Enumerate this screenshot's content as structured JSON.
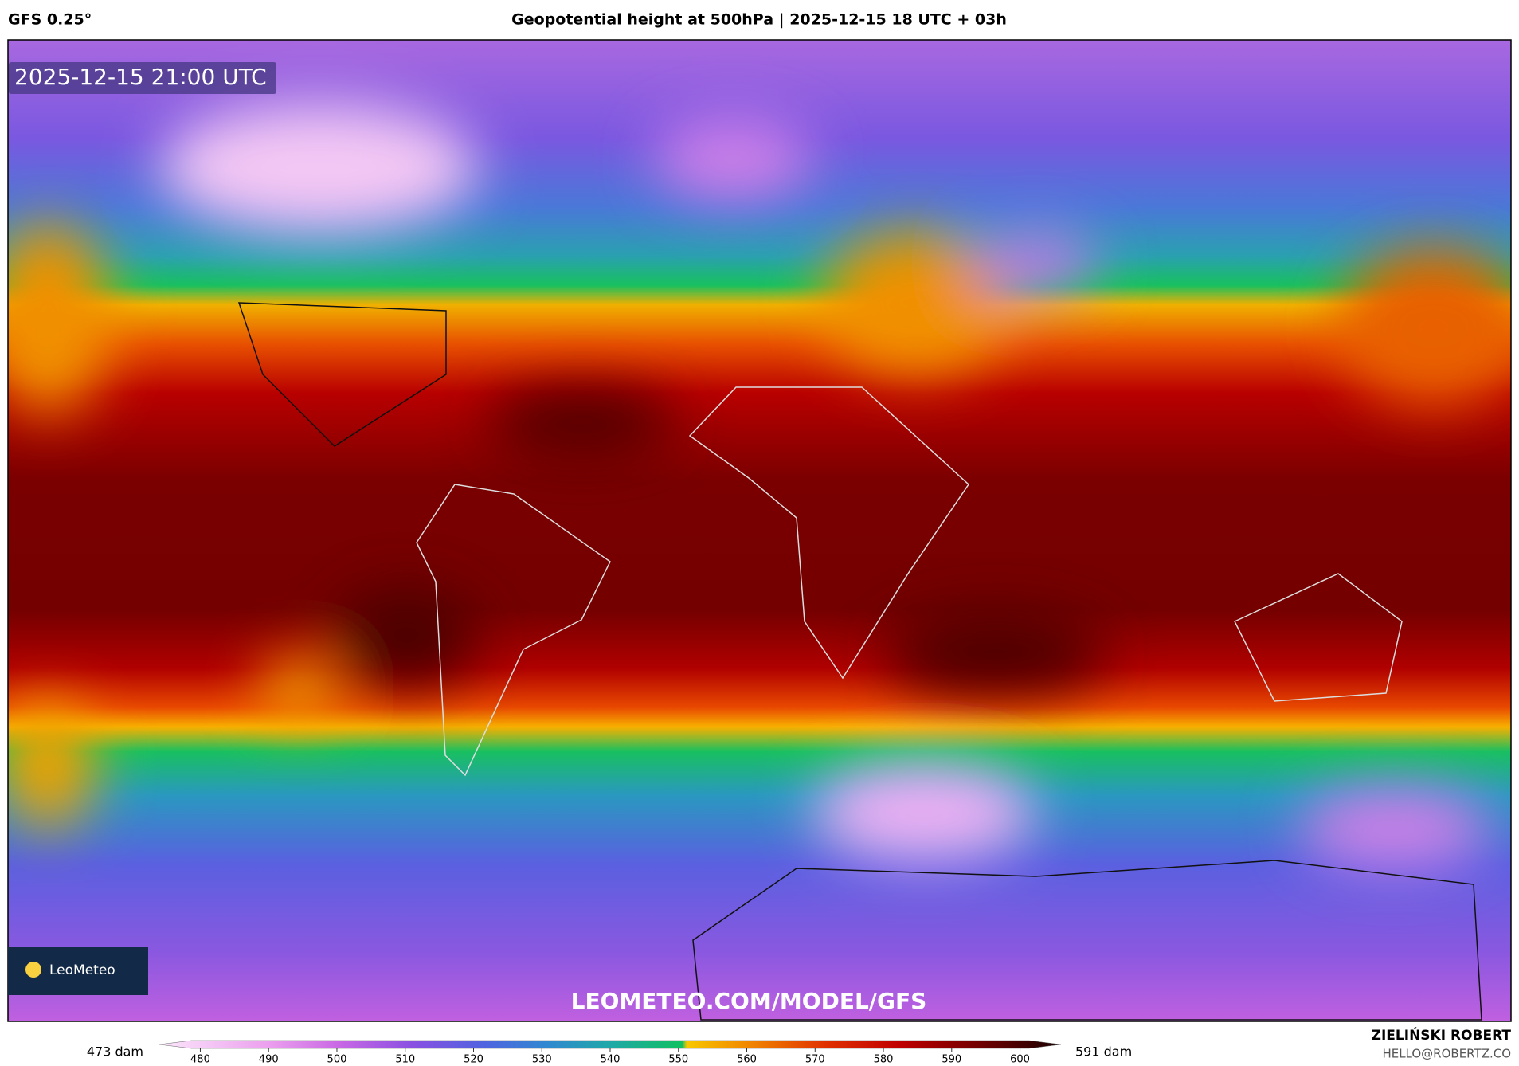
{
  "header": {
    "model": "GFS 0.25°",
    "title": "Geopotential height at 500hPa | 2025-12-15 18 UTC + 03h"
  },
  "map": {
    "valid_time": "2025-12-15 21:00 UTC",
    "watermark": "LEOMETEO.COM/MODEL/GFS",
    "logo": "LeoMeteo"
  },
  "colorbar": {
    "min_label": "473 dam",
    "max_label": "591 dam",
    "lim": [
      474,
      606
    ],
    "ticks": [
      480,
      490,
      500,
      510,
      520,
      530,
      540,
      550,
      560,
      570,
      580,
      590,
      600
    ]
  },
  "footer": {
    "author": "ZIELIŃSKI ROBERT",
    "email": "HELLO@ROBERTZ.CO"
  }
}
